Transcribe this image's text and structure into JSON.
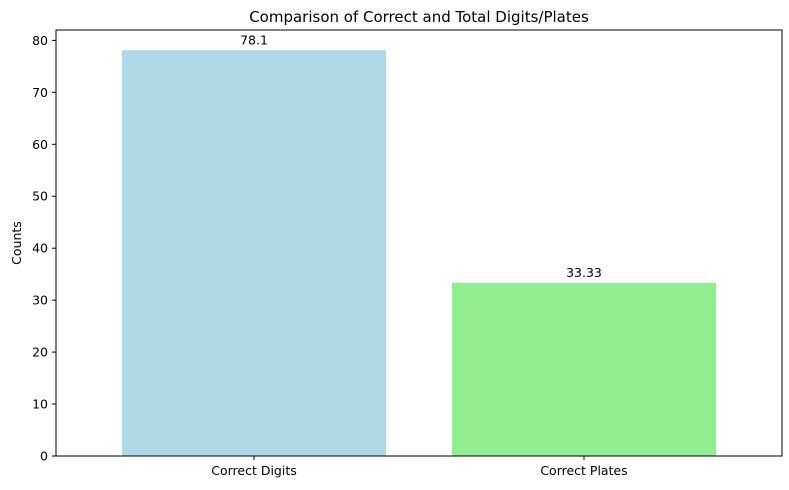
{
  "chart_data": {
    "type": "bar",
    "title": "Comparison of Correct and Total Digits/Plates",
    "xlabel": "",
    "ylabel": "Counts",
    "categories": [
      "Correct Digits",
      "Correct Plates"
    ],
    "values": [
      78.1,
      33.33
    ],
    "data_labels": [
      "78.1",
      "33.33"
    ],
    "colors": [
      "#add8e6",
      "#90ee90"
    ],
    "ylim": [
      0,
      82
    ],
    "yticks": [
      0,
      10,
      20,
      30,
      40,
      50,
      60,
      70,
      80
    ],
    "grid": false,
    "legend": "none"
  }
}
